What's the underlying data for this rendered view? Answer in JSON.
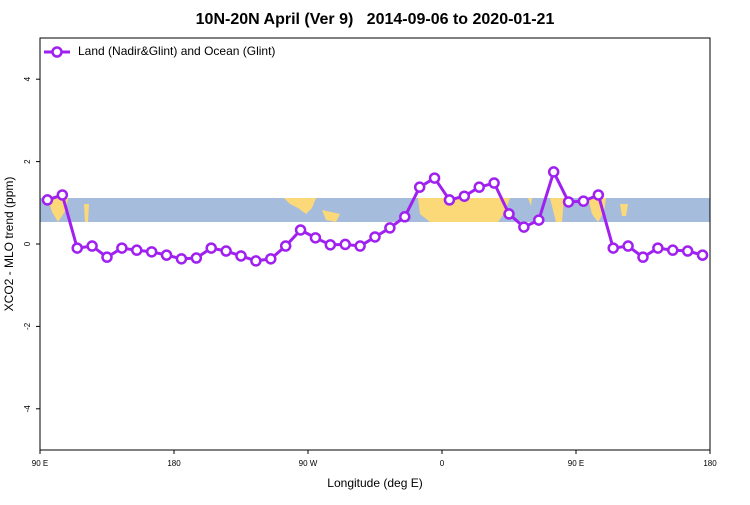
{
  "chart_data": {
    "type": "line",
    "title": "10N-20N April (Ver 9)   2014-09-06 to 2020-01-21",
    "x_label": "Longitude (deg E)",
    "y_label": "XCO2 - MLO trend (ppm)",
    "x": [
      95,
      105,
      115,
      125,
      135,
      145,
      155,
      165,
      175,
      185,
      195,
      205,
      215,
      225,
      235,
      245,
      255,
      265,
      275,
      285,
      295,
      305,
      315,
      325,
      335,
      345,
      355,
      365,
      375,
      385,
      395,
      405,
      415,
      425,
      435,
      445,
      455,
      465,
      475,
      485,
      495,
      505,
      515,
      525,
      535
    ],
    "series": [
      {
        "name": "Land (Nadir&Glint) and Ocean (Glint)",
        "color": "#a020f0",
        "values": [
          1.07,
          1.19,
          -0.1,
          -0.05,
          -0.32,
          -0.1,
          -0.15,
          -0.19,
          -0.27,
          -0.36,
          -0.34,
          -0.1,
          -0.17,
          -0.29,
          -0.41,
          -0.36,
          -0.05,
          0.34,
          0.15,
          -0.02,
          -0.01,
          -0.05,
          0.17,
          0.39,
          0.66,
          1.38,
          1.6,
          1.07,
          1.16,
          1.38,
          1.48,
          0.73,
          0.41,
          0.58,
          1.75,
          1.02,
          1.04,
          1.19,
          -0.1,
          -0.05,
          -0.32,
          -0.1,
          -0.15,
          -0.17,
          -0.27
        ]
      }
    ],
    "xlim": [
      90,
      540
    ],
    "xticks": [
      {
        "value": 90,
        "label": "90 E"
      },
      180,
      {
        "value": 270,
        "label": "90 W"
      },
      {
        "value": 360,
        "label": "0"
      },
      {
        "value": 450,
        "label": "90 E"
      },
      {
        "value": 540,
        "label": "180"
      }
    ],
    "ylim": [
      -5,
      5
    ],
    "yticks": [
      -4,
      -2,
      0,
      2,
      4
    ],
    "legend": "top-left"
  }
}
